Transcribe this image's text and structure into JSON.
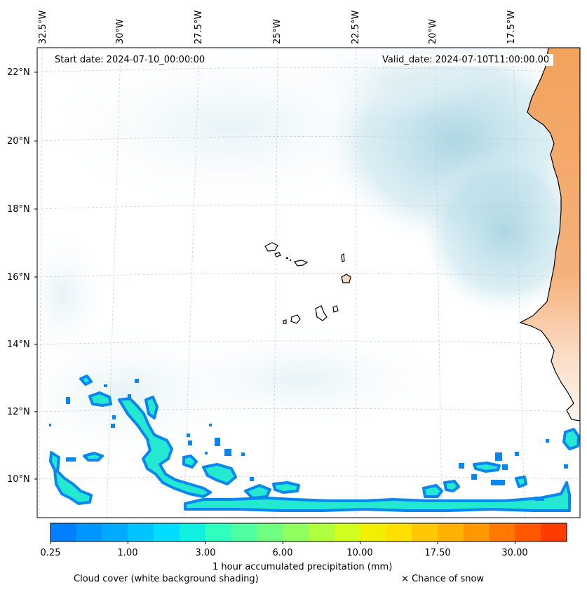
{
  "map": {
    "start_date": "Start date: 2024-07-10_00:00:00",
    "valid_date": "Valid_date: 2024-07-10T11:00:00.00",
    "longitude_labels": [
      "32.5°W",
      "30°W",
      "27.5°W",
      "25°W",
      "22.5°W",
      "20°W",
      "17.5°W"
    ],
    "latitude_labels": [
      "22°N",
      "20°N",
      "18°N",
      "16°N",
      "14°N",
      "12°N",
      "10°N"
    ]
  },
  "colorbar": {
    "colors": [
      "#0080ff",
      "#0096ff",
      "#00aaff",
      "#00c4ff",
      "#00dcff",
      "#10f0e0",
      "#30ffc0",
      "#50ffa0",
      "#70ff80",
      "#90ff60",
      "#b0ff40",
      "#d0ff20",
      "#f0f000",
      "#ffe000",
      "#ffc800",
      "#ffb000",
      "#ff9800",
      "#ff7800",
      "#ff5800",
      "#ff3c00"
    ],
    "tick_labels": [
      "0.25",
      "1.00",
      "3.00",
      "6.00",
      "10.00",
      "17.50",
      "30.00"
    ],
    "label": "1 hour accumulated precipitation (mm)"
  },
  "legend": {
    "cloud_cover": "Cloud cover (white background shading)",
    "snow": "× Chance of snow"
  }
}
